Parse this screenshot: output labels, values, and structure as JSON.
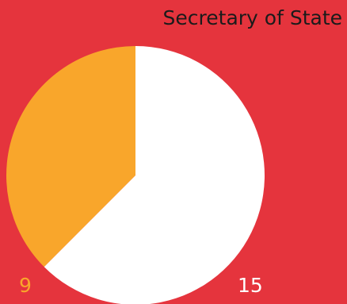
{
  "colors": {
    "background": "#e5343d",
    "title_text": "#1b1b1b"
  },
  "chart_data": {
    "type": "pie",
    "title": "Secretary of State",
    "categories": [
      "",
      ""
    ],
    "values": [
      9,
      15
    ],
    "data_labels": [
      "9",
      "15"
    ],
    "colors": [
      "#f9a62b",
      "#ffffff"
    ],
    "label_colors": [
      "#f9a62b",
      "#ffffff"
    ],
    "start": "top",
    "direction": "counterclockwise",
    "legend": "none",
    "grid": false
  }
}
